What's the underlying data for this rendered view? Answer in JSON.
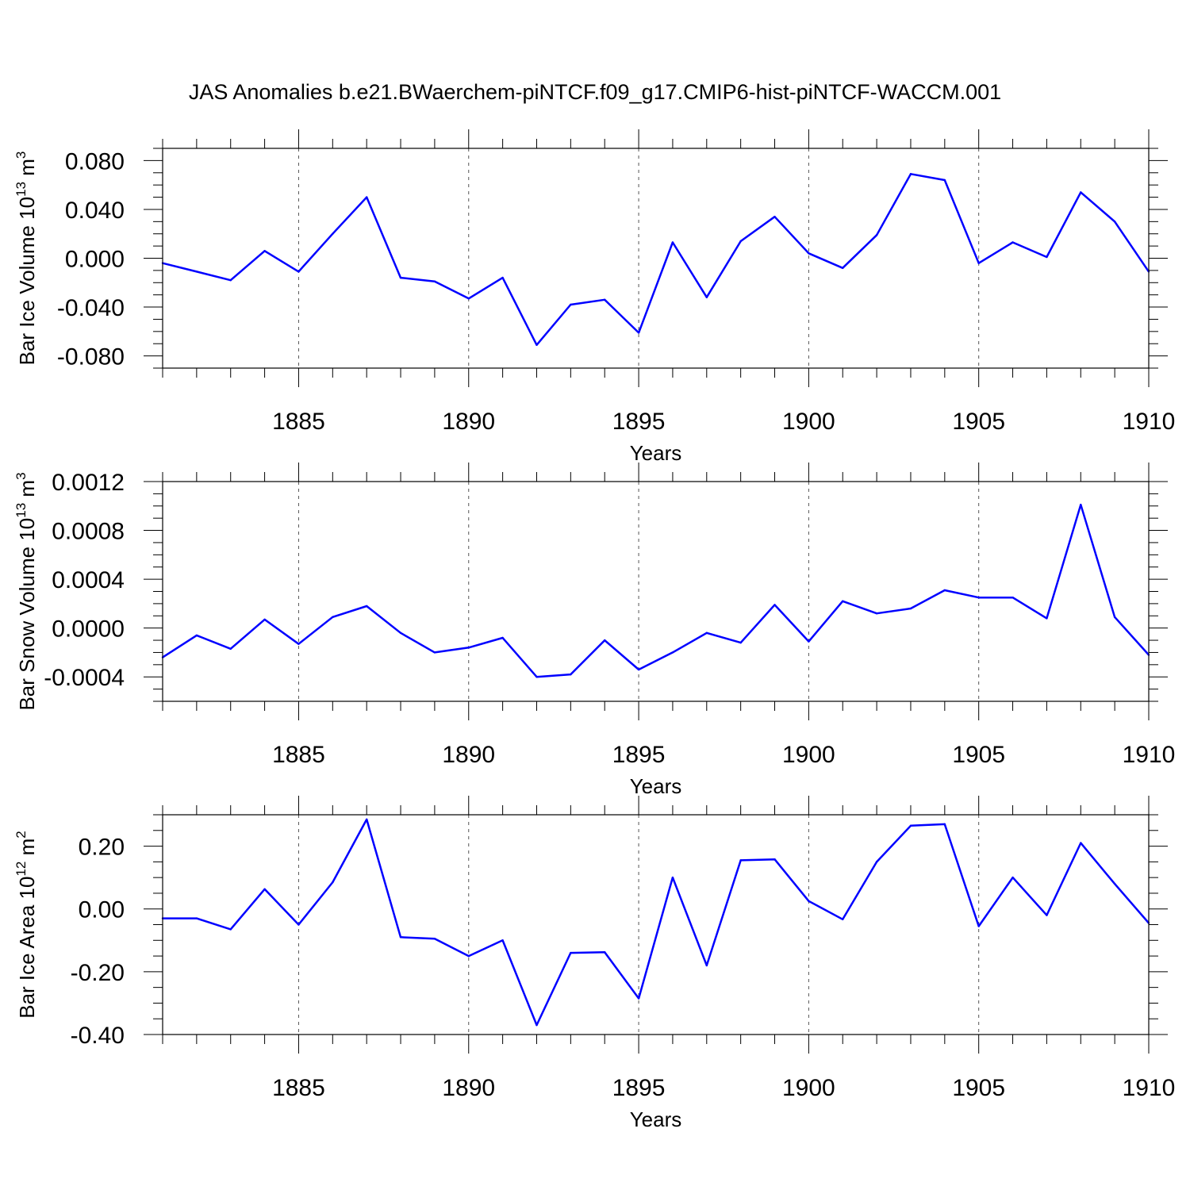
{
  "title": "JAS Anomalies b.e21.BWaerchem-piNTCF.f09_g17.CMIP6-hist-piNTCF-WACCM.001",
  "line_color": "#0000ff",
  "chart_data": [
    {
      "type": "line",
      "name": "ice-volume",
      "ylabel": "Bar Ice Volume 10",
      "ylabel_exp": "13",
      "ylabel_unit": " m",
      "ylabel_unit_exp": "3",
      "xlabel": "Years",
      "xlim": [
        1881,
        1910
      ],
      "ylim": [
        -0.09,
        0.09
      ],
      "yticks": [
        -0.08,
        -0.04,
        0.0,
        0.04,
        0.08
      ],
      "yticklabels": [
        "-0.080",
        "-0.040",
        "0.000",
        "0.040",
        "0.080"
      ],
      "yminor_step": 0.01,
      "xticks": [
        1885,
        1890,
        1895,
        1900,
        1905,
        1910
      ],
      "xticklabels": [
        "1885",
        "1890",
        "1895",
        "1900",
        "1905",
        "1910"
      ],
      "x": [
        1881,
        1882,
        1883,
        1884,
        1885,
        1886,
        1887,
        1888,
        1889,
        1890,
        1891,
        1892,
        1893,
        1894,
        1895,
        1896,
        1897,
        1898,
        1899,
        1900,
        1901,
        1902,
        1903,
        1904,
        1905,
        1906,
        1907,
        1908,
        1909,
        1910
      ],
      "values": [
        -0.004,
        -0.011,
        -0.018,
        0.006,
        -0.011,
        0.02,
        0.05,
        -0.016,
        -0.019,
        -0.033,
        -0.016,
        -0.071,
        -0.038,
        -0.034,
        -0.061,
        0.013,
        -0.032,
        0.014,
        0.034,
        0.004,
        -0.008,
        0.019,
        0.069,
        0.064,
        -0.004,
        0.013,
        0.001,
        0.054,
        0.03,
        -0.011
      ]
    },
    {
      "type": "line",
      "name": "snow-volume",
      "ylabel": "Bar Snow Volume 10",
      "ylabel_exp": "13",
      "ylabel_unit": " m",
      "ylabel_unit_exp": "3",
      "xlabel": "Years",
      "xlim": [
        1881,
        1910
      ],
      "ylim": [
        -0.0006,
        0.0012
      ],
      "yticks": [
        -0.0004,
        0.0,
        0.0004,
        0.0008,
        0.0012
      ],
      "yticklabels": [
        "-0.0004",
        "0.0000",
        "0.0004",
        "0.0008",
        "0.0012"
      ],
      "yminor_step": 0.0001,
      "xticks": [
        1885,
        1890,
        1895,
        1900,
        1905,
        1910
      ],
      "xticklabels": [
        "1885",
        "1890",
        "1895",
        "1900",
        "1905",
        "1910"
      ],
      "x": [
        1881,
        1882,
        1883,
        1884,
        1885,
        1886,
        1887,
        1888,
        1889,
        1890,
        1891,
        1892,
        1893,
        1894,
        1895,
        1896,
        1897,
        1898,
        1899,
        1900,
        1901,
        1902,
        1903,
        1904,
        1905,
        1906,
        1907,
        1908,
        1909,
        1910
      ],
      "values": [
        -0.00024,
        -6e-05,
        -0.00017,
        7e-05,
        -0.00013,
        9e-05,
        0.00018,
        -4e-05,
        -0.0002,
        -0.00016,
        -8e-05,
        -0.0004,
        -0.00038,
        -0.0001,
        -0.00034,
        -0.0002,
        -4e-05,
        -0.00012,
        0.00019,
        -0.00011,
        0.00022,
        0.00012,
        0.00016,
        0.00031,
        0.00025,
        0.00025,
        8e-05,
        0.00101,
        9e-05,
        -0.00022
      ]
    },
    {
      "type": "line",
      "name": "ice-area",
      "ylabel": "Bar Ice Area 10",
      "ylabel_exp": "12",
      "ylabel_unit": " m",
      "ylabel_unit_exp": "2",
      "xlabel": "Years",
      "xlim": [
        1881,
        1910
      ],
      "ylim": [
        -0.4,
        0.3
      ],
      "yticks": [
        -0.4,
        -0.2,
        0.0,
        0.2
      ],
      "yticklabels": [
        "-0.40",
        "-0.20",
        "0.00",
        "0.20"
      ],
      "yminor_step": 0.05,
      "xticks": [
        1885,
        1890,
        1895,
        1900,
        1905,
        1910
      ],
      "xticklabels": [
        "1885",
        "1890",
        "1895",
        "1900",
        "1905",
        "1910"
      ],
      "x": [
        1881,
        1882,
        1883,
        1884,
        1885,
        1886,
        1887,
        1888,
        1889,
        1890,
        1891,
        1892,
        1893,
        1894,
        1895,
        1896,
        1897,
        1898,
        1899,
        1900,
        1901,
        1902,
        1903,
        1904,
        1905,
        1906,
        1907,
        1908,
        1909,
        1910
      ],
      "values": [
        -0.03,
        -0.03,
        -0.065,
        0.063,
        -0.05,
        0.085,
        0.285,
        -0.09,
        -0.095,
        -0.15,
        -0.1,
        -0.37,
        -0.14,
        -0.138,
        -0.285,
        0.1,
        -0.18,
        0.155,
        0.158,
        0.025,
        -0.033,
        0.15,
        0.265,
        0.27,
        -0.055,
        0.1,
        -0.02,
        0.21,
        0.08,
        -0.045
      ]
    }
  ]
}
